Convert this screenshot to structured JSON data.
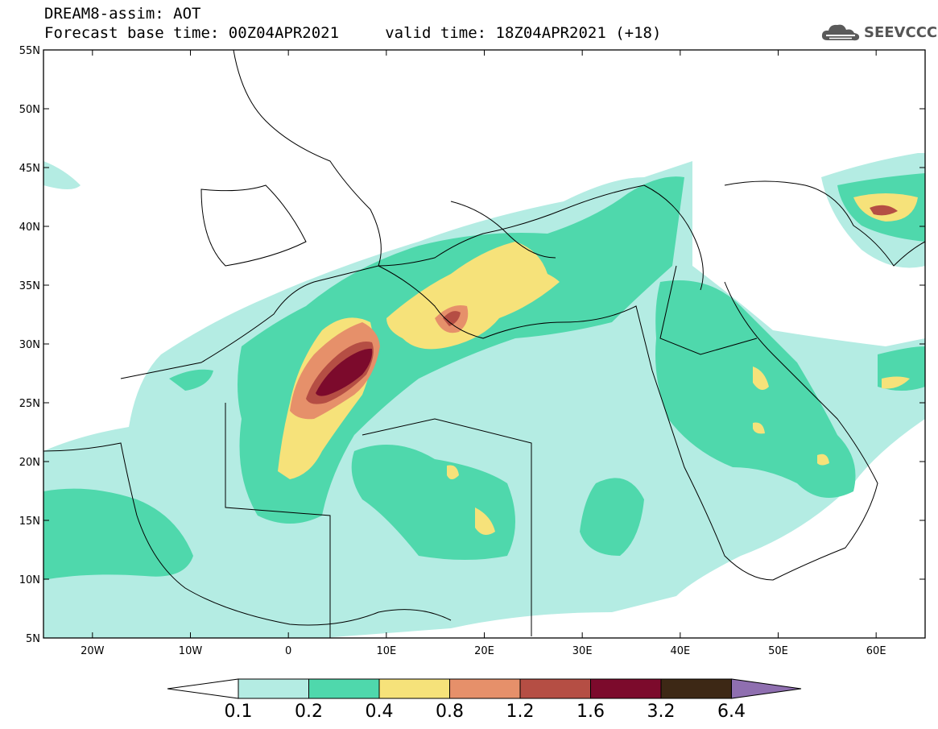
{
  "header": {
    "line1": "DREAM8-assim: AOT",
    "line2": "Forecast base time: 00Z04APR2021     valid time: 18Z04APR2021 (+18)"
  },
  "logo": {
    "text": "SEEVCCC",
    "icon": "cloud-logo-icon"
  },
  "map": {
    "lon_range": [
      -25,
      65
    ],
    "lat_range": [
      5,
      55
    ],
    "lat_ticks": [
      {
        "value": 55,
        "label": "55N"
      },
      {
        "value": 50,
        "label": "50N"
      },
      {
        "value": 45,
        "label": "45N"
      },
      {
        "value": 40,
        "label": "40N"
      },
      {
        "value": 35,
        "label": "35N"
      },
      {
        "value": 30,
        "label": "30N"
      },
      {
        "value": 25,
        "label": "25N"
      },
      {
        "value": 20,
        "label": "20N"
      },
      {
        "value": 15,
        "label": "15N"
      },
      {
        "value": 10,
        "label": "10N"
      },
      {
        "value": 5,
        "label": "5N"
      }
    ],
    "lon_ticks": [
      {
        "value": -20,
        "label": "20W"
      },
      {
        "value": -10,
        "label": "10W"
      },
      {
        "value": 0,
        "label": "0"
      },
      {
        "value": 10,
        "label": "10E"
      },
      {
        "value": 20,
        "label": "20E"
      },
      {
        "value": 30,
        "label": "30E"
      },
      {
        "value": 40,
        "label": "40E"
      },
      {
        "value": 50,
        "label": "50E"
      },
      {
        "value": 60,
        "label": "60E"
      }
    ]
  },
  "colorbar": {
    "under_color": "#ffffff",
    "over_color": "#8f6fb0",
    "bins": [
      {
        "color": "#b4ece3"
      },
      {
        "color": "#4fd8ac"
      },
      {
        "color": "#f6e27a"
      },
      {
        "color": "#e6906a"
      },
      {
        "color": "#b54e44"
      },
      {
        "color": "#7c0a2c"
      },
      {
        "color": "#3d2815"
      }
    ],
    "labels": [
      "0.1",
      "0.2",
      "0.4",
      "0.8",
      "1.2",
      "1.6",
      "3.2",
      "6.4"
    ]
  }
}
